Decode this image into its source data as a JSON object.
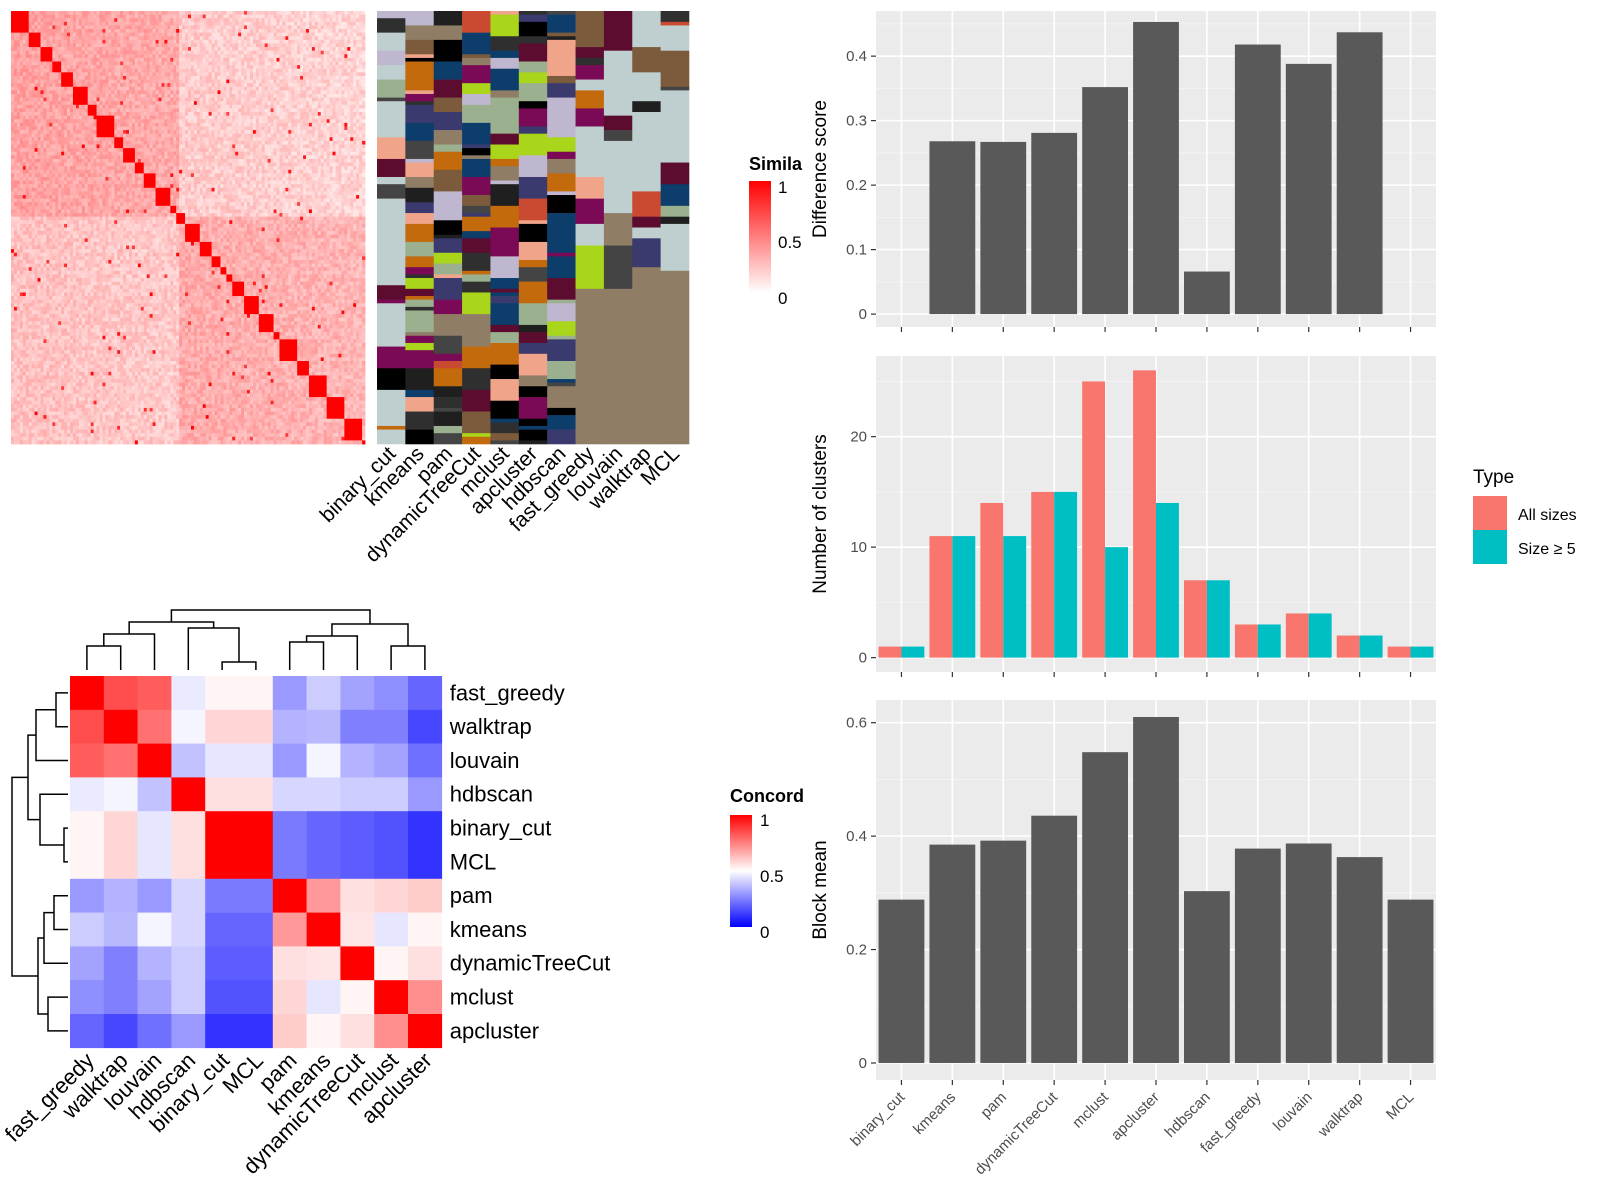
{
  "figure": {
    "similarity_legend": {
      "title": "Simila",
      "ticks": [
        "1",
        "0.5",
        "0"
      ]
    },
    "concordance_legend": {
      "title": "Concord",
      "ticks": [
        "1",
        "0.5",
        "0"
      ]
    },
    "type_legend": {
      "title": "Type",
      "items": [
        "All sizes",
        "Size ≥ 5"
      ]
    },
    "colors": {
      "bar": "#595959",
      "all_sizes": "#F8766D",
      "size5": "#00BFC4",
      "panel_bg": "#EBEBEB",
      "annotation_bg": "#BFCFD0",
      "heat_high": "#FF0000",
      "heat_mid": "#FFFFFF",
      "heat_low": "#0000FF"
    }
  },
  "chart_data": [
    {
      "type": "heatmap",
      "name": "similarity matrix",
      "annotation_columns": [
        "binary_cut",
        "kmeans",
        "pam",
        "dynamicTreeCut",
        "mclust",
        "apcluster",
        "hdbscan",
        "fast_greedy",
        "louvain",
        "walktrap",
        "MCL"
      ],
      "legend_title": "Simila",
      "legend_ticks": [
        1,
        0.5,
        0
      ]
    },
    {
      "type": "heatmap",
      "name": "concordance",
      "rows": [
        "fast_greedy",
        "walktrap",
        "louvain",
        "hdbscan",
        "binary_cut",
        "MCL",
        "pam",
        "kmeans",
        "dynamicTreeCut",
        "mclust",
        "apcluster"
      ],
      "columns": [
        "fast_greedy",
        "walktrap",
        "louvain",
        "hdbscan",
        "binary_cut",
        "MCL",
        "pam",
        "kmeans",
        "dynamicTreeCut",
        "mclust",
        "apcluster"
      ],
      "values": [
        [
          1.0,
          0.85,
          0.82,
          0.46,
          0.52,
          0.52,
          0.3,
          0.4,
          0.32,
          0.28,
          0.2
        ],
        [
          0.85,
          1.0,
          0.78,
          0.48,
          0.58,
          0.58,
          0.35,
          0.36,
          0.25,
          0.25,
          0.14
        ],
        [
          0.82,
          0.78,
          1.0,
          0.38,
          0.45,
          0.45,
          0.3,
          0.48,
          0.35,
          0.32,
          0.22
        ],
        [
          0.46,
          0.48,
          0.38,
          1.0,
          0.56,
          0.56,
          0.42,
          0.42,
          0.4,
          0.4,
          0.3
        ],
        [
          0.52,
          0.58,
          0.45,
          0.56,
          1.0,
          1.0,
          0.24,
          0.2,
          0.18,
          0.16,
          0.1
        ],
        [
          0.52,
          0.58,
          0.45,
          0.56,
          1.0,
          1.0,
          0.24,
          0.2,
          0.18,
          0.16,
          0.1
        ],
        [
          0.3,
          0.35,
          0.3,
          0.42,
          0.24,
          0.24,
          1.0,
          0.7,
          0.56,
          0.58,
          0.6
        ],
        [
          0.4,
          0.36,
          0.48,
          0.42,
          0.2,
          0.2,
          0.7,
          1.0,
          0.55,
          0.45,
          0.52
        ],
        [
          0.32,
          0.25,
          0.35,
          0.4,
          0.18,
          0.18,
          0.56,
          0.55,
          1.0,
          0.52,
          0.56
        ],
        [
          0.28,
          0.25,
          0.32,
          0.4,
          0.16,
          0.16,
          0.58,
          0.45,
          0.52,
          1.0,
          0.72
        ],
        [
          0.2,
          0.14,
          0.22,
          0.3,
          0.1,
          0.1,
          0.6,
          0.52,
          0.56,
          0.72,
          1.0
        ]
      ],
      "legend_title": "Concord",
      "legend_ticks": [
        1,
        0.5,
        0
      ]
    },
    {
      "type": "bar",
      "name": "difference score",
      "categories": [
        "binary_cut",
        "kmeans",
        "pam",
        "dynamicTreeCut",
        "mclust",
        "apcluster",
        "hdbscan",
        "fast_greedy",
        "louvain",
        "walktrap",
        "MCL"
      ],
      "values": [
        0,
        0.268,
        0.267,
        0.281,
        0.352,
        0.453,
        0.066,
        0.418,
        0.388,
        0.437,
        0
      ],
      "ylabel": "Difference score",
      "ylim": [
        -0.02,
        0.47
      ],
      "yticks": [
        0.0,
        0.1,
        0.2,
        0.3,
        0.4
      ],
      "grid": true
    },
    {
      "type": "bar",
      "name": "number of clusters",
      "categories": [
        "binary_cut",
        "kmeans",
        "pam",
        "dynamicTreeCut",
        "mclust",
        "apcluster",
        "hdbscan",
        "fast_greedy",
        "louvain",
        "walktrap",
        "MCL"
      ],
      "series": [
        {
          "name": "All sizes",
          "values": [
            1,
            11,
            14,
            15,
            25,
            26,
            7,
            3,
            4,
            2,
            1
          ]
        },
        {
          "name": "Size ≥ 5",
          "values": [
            1,
            11,
            11,
            15,
            10,
            14,
            7,
            3,
            4,
            2,
            1
          ]
        }
      ],
      "ylabel": "Number of clusters",
      "ylim": [
        -1.3,
        27.3
      ],
      "yticks": [
        0,
        10,
        20
      ],
      "legend_title": "Type",
      "legend": "right",
      "grid": true
    },
    {
      "type": "bar",
      "name": "block mean",
      "categories": [
        "binary_cut",
        "kmeans",
        "pam",
        "dynamicTreeCut",
        "mclust",
        "apcluster",
        "hdbscan",
        "fast_greedy",
        "louvain",
        "walktrap",
        "MCL"
      ],
      "values": [
        0.288,
        0.385,
        0.392,
        0.436,
        0.548,
        0.61,
        0.303,
        0.378,
        0.387,
        0.363,
        0.288
      ],
      "ylabel": "Block mean",
      "ylim": [
        -0.03,
        0.64
      ],
      "yticks": [
        0.0,
        0.2,
        0.4,
        0.6
      ],
      "grid": true
    }
  ]
}
